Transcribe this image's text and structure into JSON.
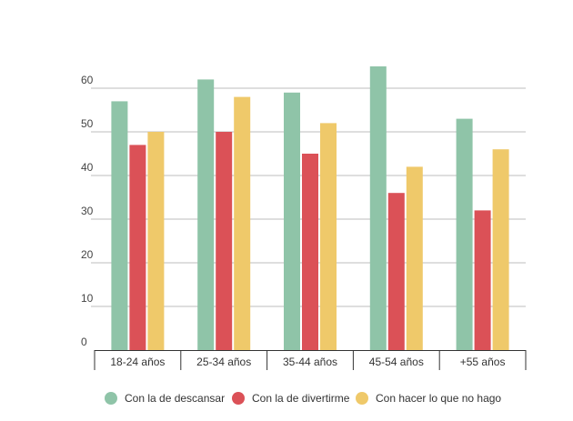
{
  "chart_data": {
    "type": "bar",
    "title": "",
    "xlabel": "",
    "ylabel": "",
    "ylim": [
      0,
      60
    ],
    "yticks": [
      0,
      10,
      20,
      30,
      40,
      50,
      60
    ],
    "grid": true,
    "legend_position": "bottom",
    "categories": [
      "18-24 años",
      "25-34 años",
      "35-44 años",
      "45-54 años",
      "+55 años"
    ],
    "series": [
      {
        "name": "Con la de descansar",
        "color": "#8fc4a8",
        "values": [
          57,
          62,
          59,
          65,
          53
        ]
      },
      {
        "name": "Con la de divertirme",
        "color": "#db5157",
        "values": [
          47,
          50,
          45,
          36,
          32
        ]
      },
      {
        "name": "Con hacer lo que no hago",
        "color": "#efc96a",
        "values": [
          50,
          58,
          52,
          42,
          46
        ]
      }
    ]
  }
}
